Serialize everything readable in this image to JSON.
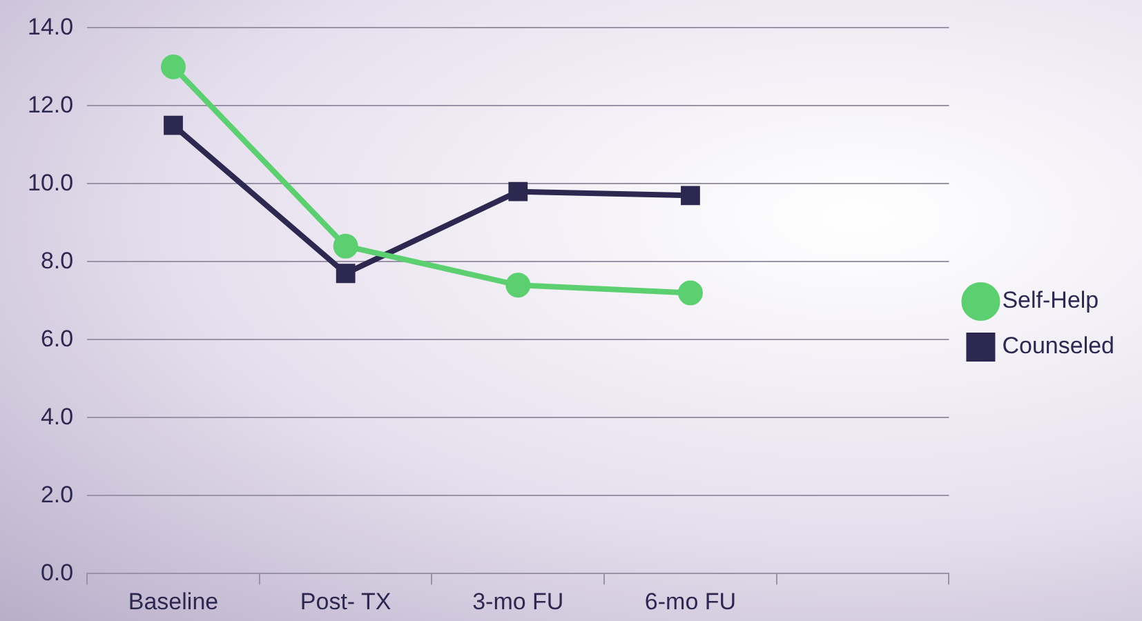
{
  "chart_data": {
    "type": "line",
    "categories": [
      "Baseline",
      "Post- TX",
      "3-mo FU",
      "6-mo FU",
      null
    ],
    "series": [
      {
        "name": "Self-Help",
        "color": "#5ccf70",
        "marker": "circle",
        "values": [
          13.0,
          8.4,
          7.4,
          7.2,
          null
        ]
      },
      {
        "name": "Counseled",
        "color": "#2c2850",
        "marker": "square",
        "values": [
          11.5,
          7.7,
          9.8,
          9.7,
          null
        ]
      }
    ],
    "ylim": [
      0,
      14
    ],
    "yticks": [
      {
        "value": 0,
        "label": "0.0"
      },
      {
        "value": 2,
        "label": "2.0"
      },
      {
        "value": 4,
        "label": "4.0"
      },
      {
        "value": 6,
        "label": "6.0"
      },
      {
        "value": 8,
        "label": "8.0"
      },
      {
        "value": 10,
        "label": "10.0"
      },
      {
        "value": 12,
        "label": "12.0"
      },
      {
        "value": 14,
        "label": "14.0"
      }
    ],
    "grid": "y",
    "legend": "right",
    "line_style": "solid"
  }
}
